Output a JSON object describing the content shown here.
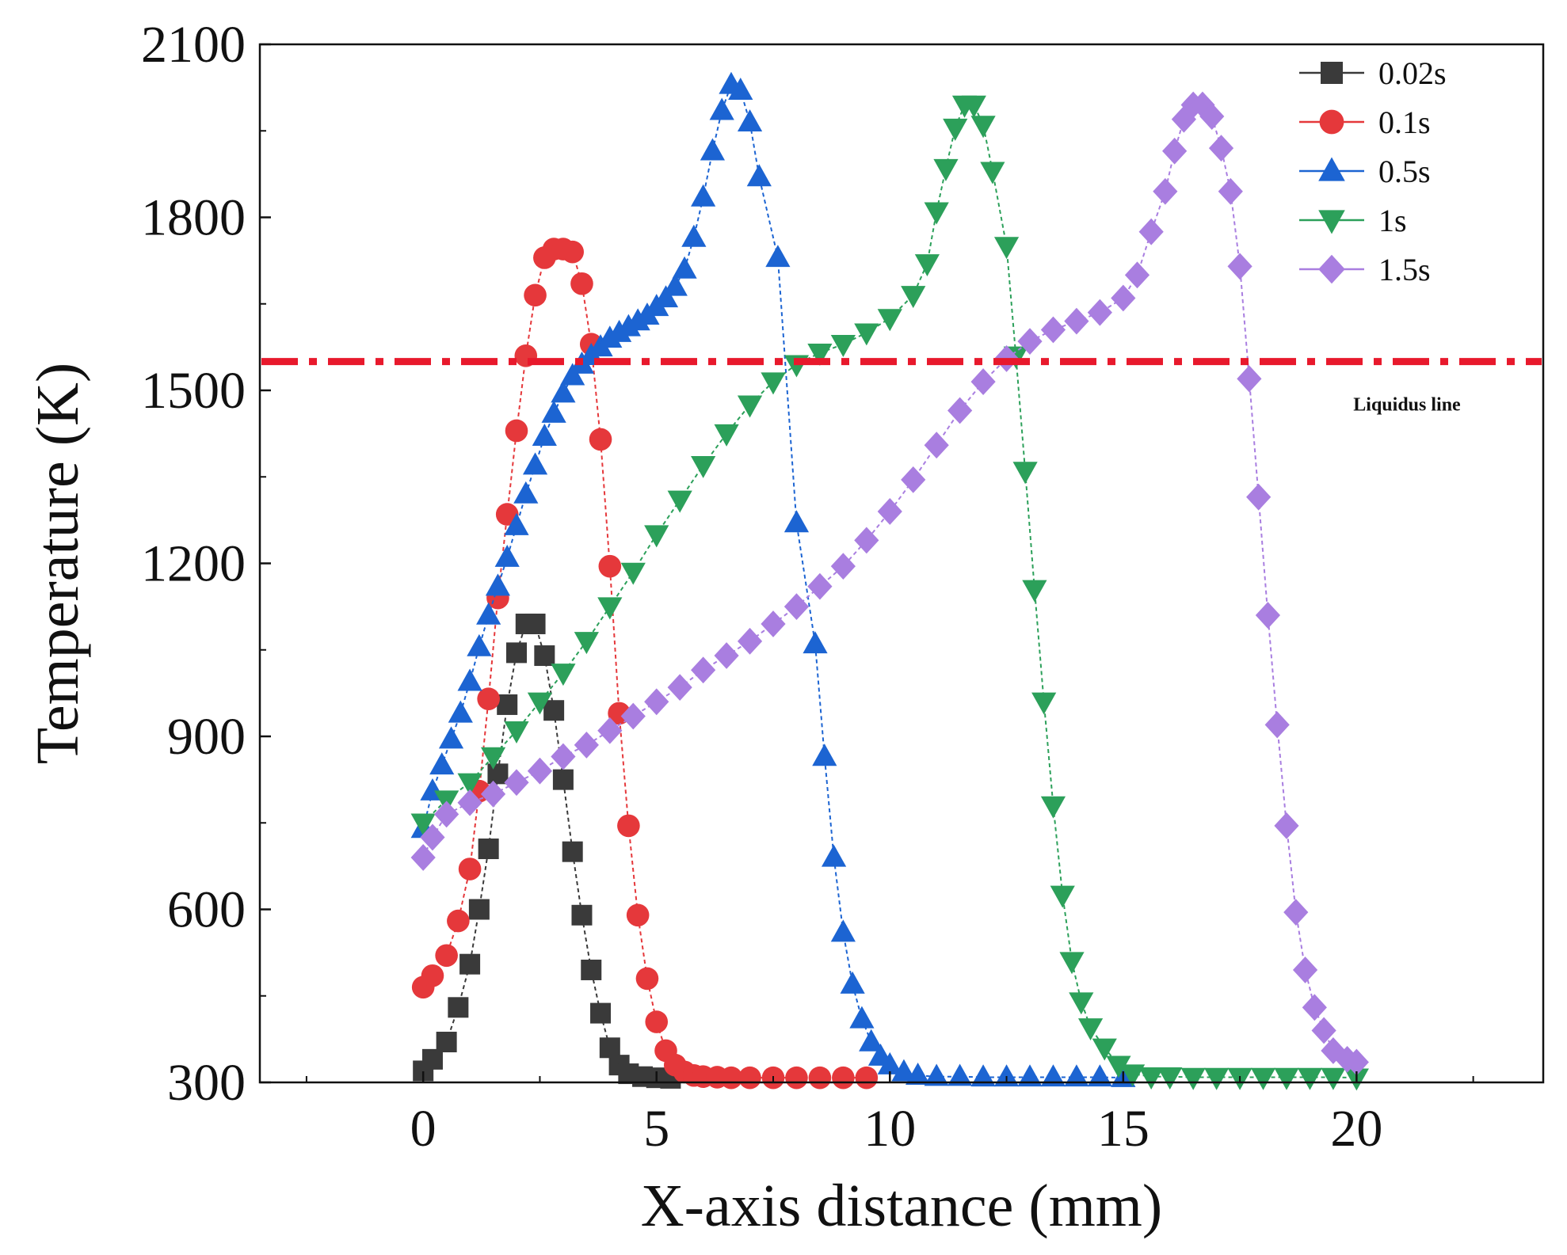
{
  "chart_data": {
    "type": "line",
    "title": "",
    "xlabel": "X-axis distance (mm)",
    "ylabel": "Temperature (K)",
    "xlim": [
      -3.5,
      24.0
    ],
    "ylim": [
      300,
      2100
    ],
    "xticks": [
      0,
      5,
      10,
      15,
      20
    ],
    "yticks": [
      300,
      600,
      900,
      1200,
      1500,
      1800,
      2100
    ],
    "xtick_labels": [
      "0",
      "5",
      "10",
      "15",
      "20"
    ],
    "ytick_labels": [
      "300",
      "600",
      "900",
      "1200",
      "1500",
      "1800",
      "2100"
    ],
    "grid": false,
    "legend_position": "top-right",
    "reference_line": {
      "label": "Liquidus line",
      "y": 1550,
      "color": "#e8192c",
      "style": "dash-dot"
    },
    "series": [
      {
        "name": "0.02s",
        "color": "#3a3a3a",
        "marker": "square",
        "points": [
          [
            0,
            320
          ],
          [
            0.2,
            340
          ],
          [
            0.5,
            370
          ],
          [
            0.75,
            430
          ],
          [
            1,
            505
          ],
          [
            1.2,
            600
          ],
          [
            1.4,
            705
          ],
          [
            1.6,
            835
          ],
          [
            1.8,
            955
          ],
          [
            2.0,
            1045
          ],
          [
            2.2,
            1095
          ],
          [
            2.4,
            1095
          ],
          [
            2.6,
            1040
          ],
          [
            2.8,
            945
          ],
          [
            3.0,
            825
          ],
          [
            3.2,
            700
          ],
          [
            3.4,
            590
          ],
          [
            3.6,
            495
          ],
          [
            3.8,
            420
          ],
          [
            4.0,
            360
          ],
          [
            4.2,
            330
          ],
          [
            4.4,
            315
          ],
          [
            4.7,
            310
          ],
          [
            5.0,
            308
          ],
          [
            5.3,
            307
          ]
        ]
      },
      {
        "name": "0.1s",
        "color": "#e5383b",
        "marker": "circle",
        "points": [
          [
            0,
            465
          ],
          [
            0.2,
            485
          ],
          [
            0.5,
            520
          ],
          [
            0.75,
            580
          ],
          [
            1.0,
            670
          ],
          [
            1.2,
            805
          ],
          [
            1.4,
            965
          ],
          [
            1.6,
            1140
          ],
          [
            1.8,
            1285
          ],
          [
            2.0,
            1430
          ],
          [
            2.2,
            1560
          ],
          [
            2.4,
            1665
          ],
          [
            2.6,
            1730
          ],
          [
            2.8,
            1745
          ],
          [
            3.0,
            1745
          ],
          [
            3.2,
            1740
          ],
          [
            3.4,
            1685
          ],
          [
            3.6,
            1580
          ],
          [
            3.8,
            1415
          ],
          [
            4.0,
            1195
          ],
          [
            4.2,
            940
          ],
          [
            4.4,
            745
          ],
          [
            4.6,
            590
          ],
          [
            4.8,
            480
          ],
          [
            5.0,
            405
          ],
          [
            5.2,
            355
          ],
          [
            5.4,
            330
          ],
          [
            5.6,
            318
          ],
          [
            5.8,
            312
          ],
          [
            6.0,
            310
          ],
          [
            6.3,
            309
          ],
          [
            6.6,
            308
          ],
          [
            7.0,
            308
          ],
          [
            7.5,
            308
          ],
          [
            8.0,
            308
          ],
          [
            8.5,
            308
          ],
          [
            9.0,
            308
          ],
          [
            9.5,
            308
          ]
        ]
      },
      {
        "name": "0.5s",
        "color": "#1c64d2",
        "marker": "triangle-up",
        "points": [
          [
            0,
            740
          ],
          [
            0.2,
            805
          ],
          [
            0.4,
            850
          ],
          [
            0.6,
            895
          ],
          [
            0.8,
            940
          ],
          [
            1.0,
            995
          ],
          [
            1.2,
            1055
          ],
          [
            1.4,
            1110
          ],
          [
            1.6,
            1160
          ],
          [
            1.8,
            1210
          ],
          [
            2.0,
            1265
          ],
          [
            2.2,
            1320
          ],
          [
            2.4,
            1370
          ],
          [
            2.6,
            1420
          ],
          [
            2.8,
            1460
          ],
          [
            3.0,
            1495
          ],
          [
            3.2,
            1525
          ],
          [
            3.4,
            1545
          ],
          [
            3.6,
            1560
          ],
          [
            3.8,
            1575
          ],
          [
            4.0,
            1590
          ],
          [
            4.2,
            1600
          ],
          [
            4.4,
            1610
          ],
          [
            4.6,
            1620
          ],
          [
            4.8,
            1630
          ],
          [
            5.0,
            1645
          ],
          [
            5.2,
            1660
          ],
          [
            5.4,
            1680
          ],
          [
            5.6,
            1710
          ],
          [
            5.8,
            1765
          ],
          [
            6.0,
            1835
          ],
          [
            6.2,
            1915
          ],
          [
            6.4,
            1985
          ],
          [
            6.6,
            2030
          ],
          [
            6.8,
            2020
          ],
          [
            7.0,
            1965
          ],
          [
            7.2,
            1870
          ],
          [
            7.6,
            1730
          ],
          [
            8.0,
            1270
          ],
          [
            8.4,
            1060
          ],
          [
            8.6,
            865
          ],
          [
            8.8,
            690
          ],
          [
            9.0,
            560
          ],
          [
            9.2,
            470
          ],
          [
            9.4,
            410
          ],
          [
            9.6,
            370
          ],
          [
            9.8,
            345
          ],
          [
            10.0,
            330
          ],
          [
            10.3,
            318
          ],
          [
            10.6,
            312
          ],
          [
            11,
            310
          ],
          [
            11.5,
            310
          ],
          [
            12,
            309
          ],
          [
            12.5,
            309
          ],
          [
            13,
            309
          ],
          [
            13.5,
            309
          ],
          [
            14,
            309
          ],
          [
            14.5,
            309
          ],
          [
            15,
            308
          ]
        ]
      },
      {
        "name": "1s",
        "color": "#2ca05a",
        "marker": "triangle-down",
        "points": [
          [
            0,
            750
          ],
          [
            0.5,
            790
          ],
          [
            1,
            820
          ],
          [
            1.5,
            865
          ],
          [
            2,
            910
          ],
          [
            2.5,
            960
          ],
          [
            3,
            1010
          ],
          [
            3.5,
            1065
          ],
          [
            4,
            1125
          ],
          [
            4.5,
            1185
          ],
          [
            5,
            1250
          ],
          [
            5.5,
            1310
          ],
          [
            6,
            1370
          ],
          [
            6.5,
            1425
          ],
          [
            7,
            1475
          ],
          [
            7.5,
            1515
          ],
          [
            8,
            1545
          ],
          [
            8.5,
            1565
          ],
          [
            9,
            1580
          ],
          [
            9.5,
            1600
          ],
          [
            10,
            1625
          ],
          [
            10.5,
            1665
          ],
          [
            10.8,
            1720
          ],
          [
            11.0,
            1810
          ],
          [
            11.2,
            1885
          ],
          [
            11.4,
            1955
          ],
          [
            11.6,
            1995
          ],
          [
            11.8,
            1995
          ],
          [
            12.0,
            1960
          ],
          [
            12.2,
            1880
          ],
          [
            12.5,
            1750
          ],
          [
            12.7,
            1560
          ],
          [
            12.9,
            1360
          ],
          [
            13.1,
            1155
          ],
          [
            13.3,
            960
          ],
          [
            13.5,
            780
          ],
          [
            13.7,
            625
          ],
          [
            13.9,
            510
          ],
          [
            14.1,
            440
          ],
          [
            14.3,
            395
          ],
          [
            14.6,
            360
          ],
          [
            14.9,
            330
          ],
          [
            15.2,
            315
          ],
          [
            15.6,
            310
          ],
          [
            16,
            310
          ],
          [
            16.5,
            309
          ],
          [
            17,
            309
          ],
          [
            17.5,
            309
          ],
          [
            18,
            309
          ],
          [
            18.5,
            309
          ],
          [
            19,
            309
          ],
          [
            19.5,
            309
          ],
          [
            20,
            308
          ]
        ]
      },
      {
        "name": "1.5s",
        "color": "#a97ee0",
        "marker": "diamond",
        "points": [
          [
            0,
            690
          ],
          [
            0.2,
            725
          ],
          [
            0.5,
            765
          ],
          [
            1,
            785
          ],
          [
            1.5,
            800
          ],
          [
            2,
            820
          ],
          [
            2.5,
            840
          ],
          [
            3,
            865
          ],
          [
            3.5,
            885
          ],
          [
            4,
            910
          ],
          [
            4.5,
            935
          ],
          [
            5,
            960
          ],
          [
            5.5,
            985
          ],
          [
            6,
            1015
          ],
          [
            6.5,
            1040
          ],
          [
            7,
            1065
          ],
          [
            7.5,
            1095
          ],
          [
            8,
            1125
          ],
          [
            8.5,
            1160
          ],
          [
            9,
            1195
          ],
          [
            9.5,
            1240
          ],
          [
            10,
            1290
          ],
          [
            10.5,
            1345
          ],
          [
            11,
            1405
          ],
          [
            11.5,
            1465
          ],
          [
            12,
            1515
          ],
          [
            12.5,
            1555
          ],
          [
            13,
            1585
          ],
          [
            13.5,
            1605
          ],
          [
            14,
            1620
          ],
          [
            14.5,
            1635
          ],
          [
            15,
            1660
          ],
          [
            15.3,
            1700
          ],
          [
            15.6,
            1775
          ],
          [
            15.9,
            1845
          ],
          [
            16.1,
            1915
          ],
          [
            16.3,
            1970
          ],
          [
            16.5,
            1995
          ],
          [
            16.7,
            1995
          ],
          [
            16.9,
            1975
          ],
          [
            17.1,
            1920
          ],
          [
            17.3,
            1845
          ],
          [
            17.5,
            1715
          ],
          [
            17.7,
            1520
          ],
          [
            17.9,
            1315
          ],
          [
            18.1,
            1110
          ],
          [
            18.3,
            920
          ],
          [
            18.5,
            745
          ],
          [
            18.7,
            595
          ],
          [
            18.9,
            495
          ],
          [
            19.1,
            430
          ],
          [
            19.3,
            390
          ],
          [
            19.5,
            355
          ],
          [
            19.8,
            340
          ],
          [
            20.0,
            335
          ]
        ]
      }
    ]
  }
}
